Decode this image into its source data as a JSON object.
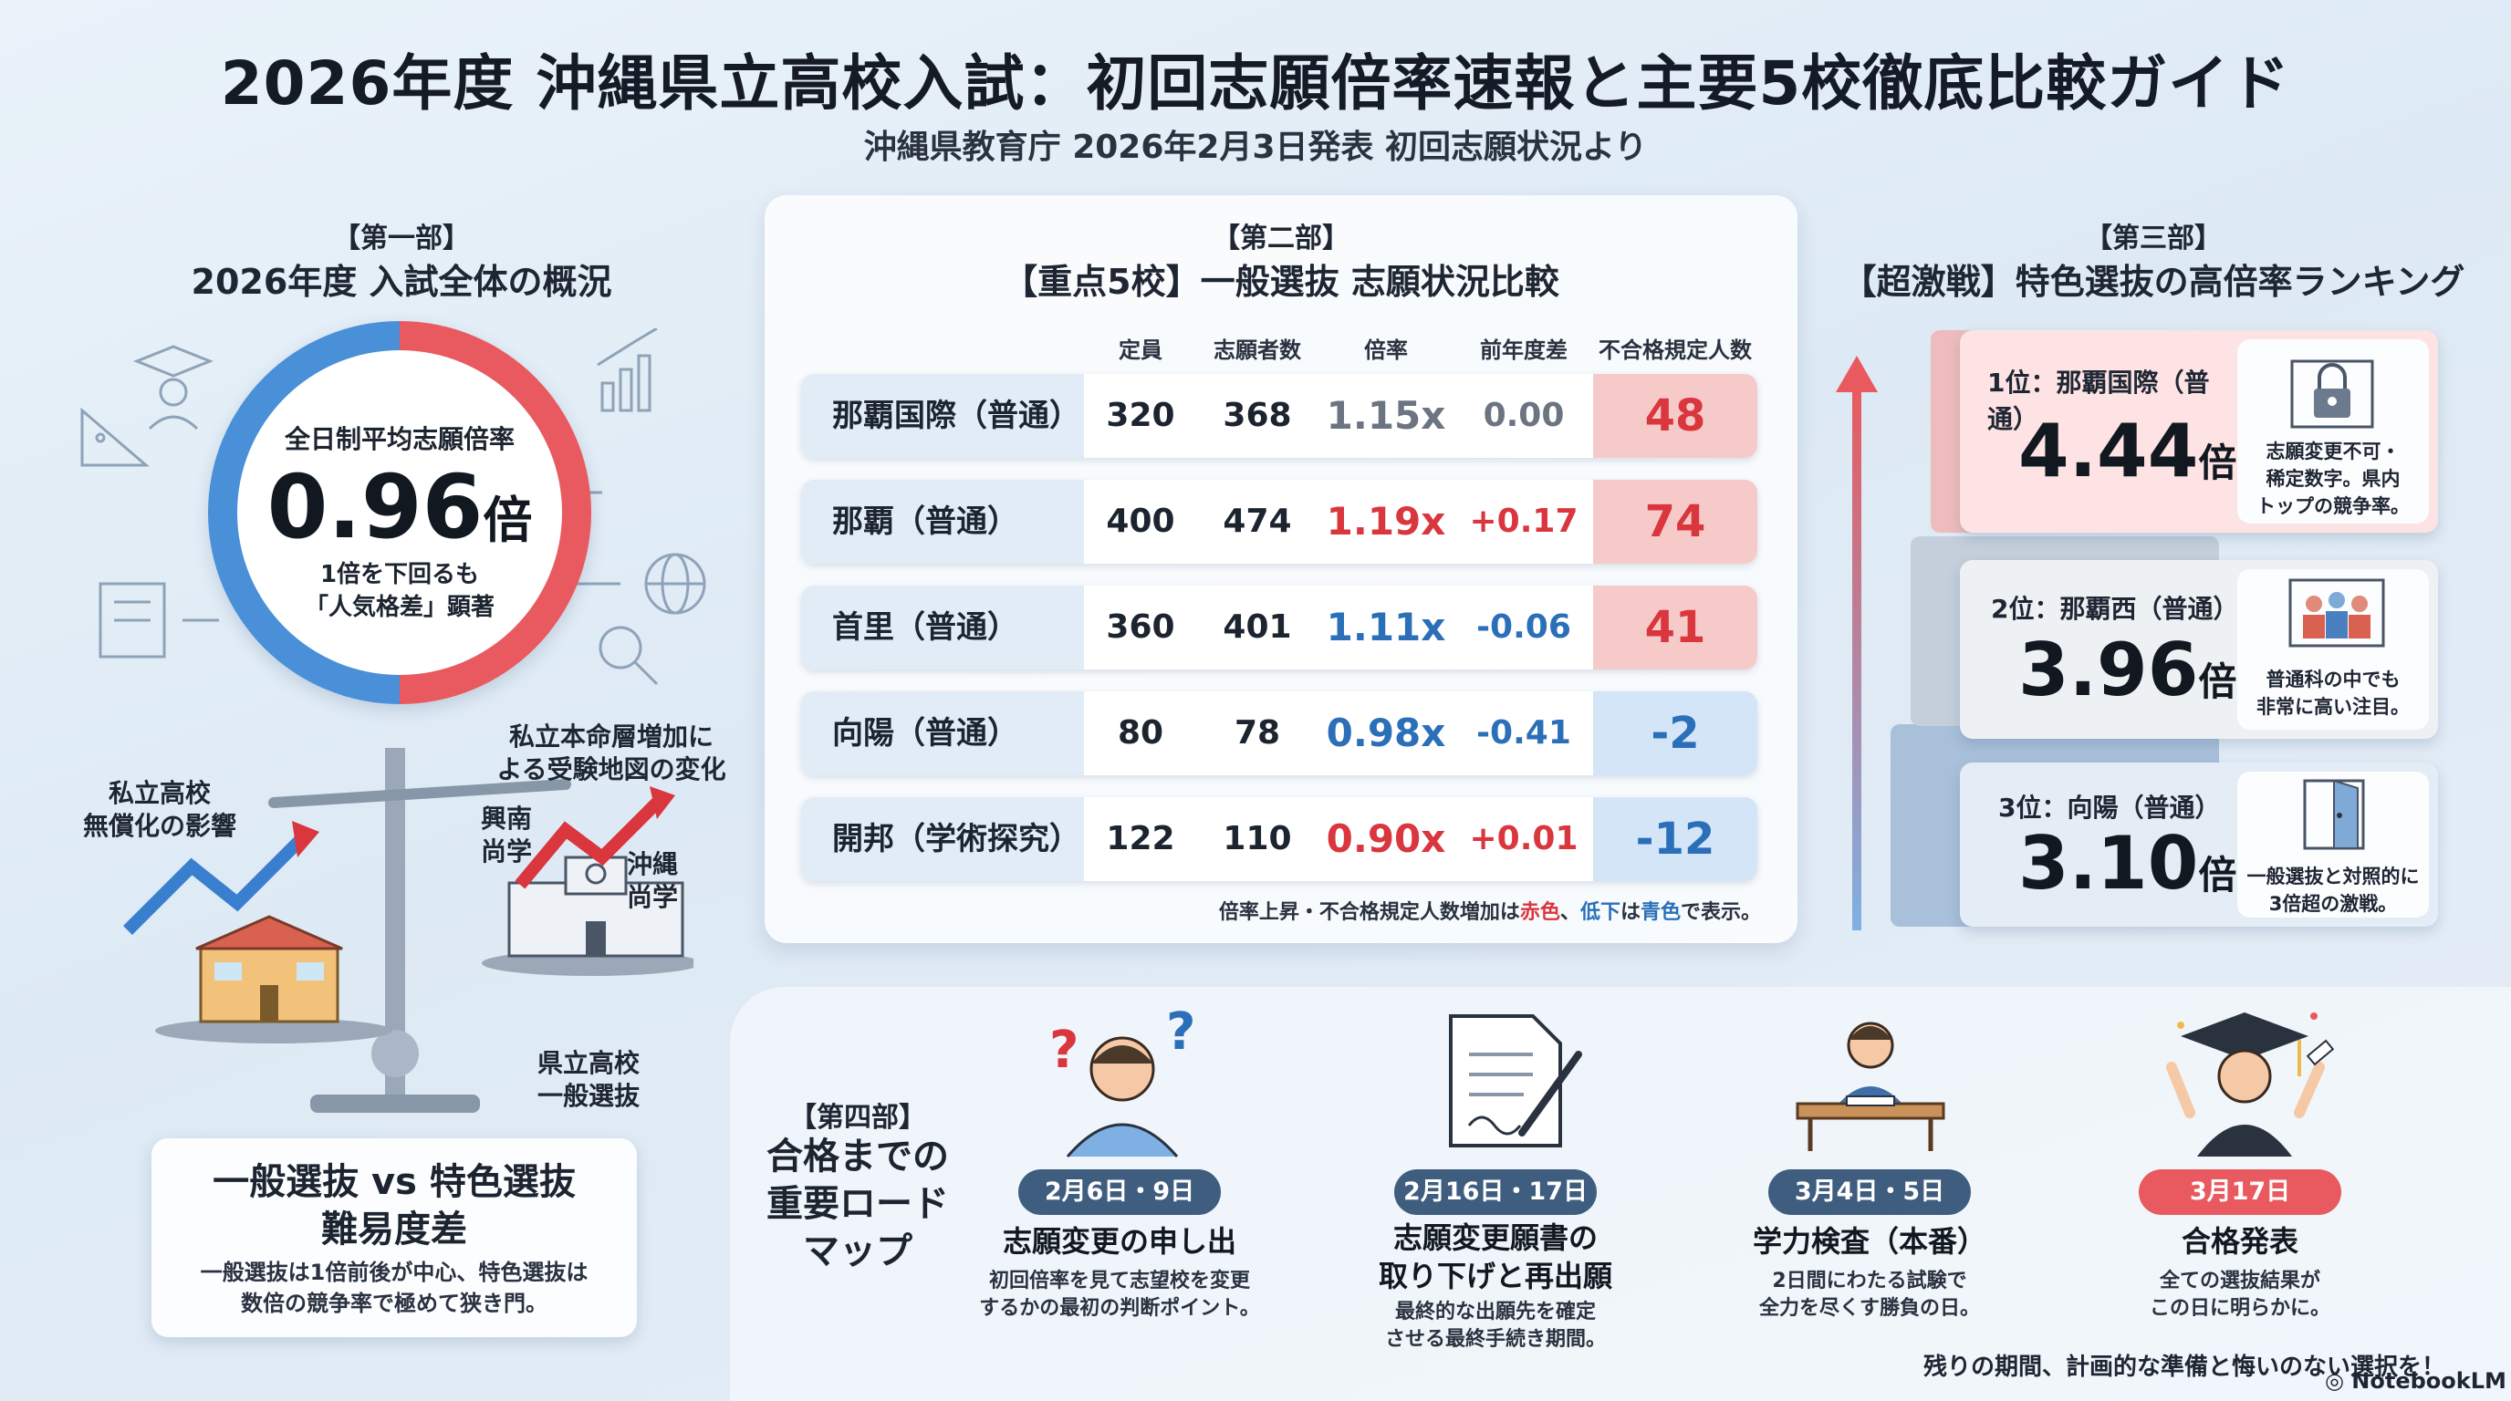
{
  "header": {
    "title": "2026年度 沖縄県立高校入試：初回志願倍率速報と主要5校徹底比較ガイド",
    "subtitle": "沖縄県教育庁 2026年2月3日発表 初回志願状況より"
  },
  "section1": {
    "tag": "【第一部】",
    "title": "2026年度 入試全体の概況",
    "ring_label": "全日制平均志願倍率",
    "ring_value": "0.96",
    "ring_unit": "倍",
    "ring_note_1": "1倍を下回るも",
    "ring_note_2": "「人気格差」顕著",
    "scale_left_1": "私立高校",
    "scale_left_2": "無償化の影響",
    "scale_right_top_1": "私立本命層増加に",
    "scale_right_top_2": "よる受験地図の変化",
    "school_a_1": "興南",
    "school_a_2": "尚学",
    "school_b_1": "沖縄",
    "school_b_2": "尚学",
    "scale_bottom_1": "県立高校",
    "scale_bottom_2": "一般選抜",
    "card_title_1": "一般選抜 vs 特色選抜",
    "card_title_2": "難易度差",
    "card_text_1": "一般選抜は1倍前後が中心、特色選抜は",
    "card_text_2": "数倍の競争率で極めて狭き門。"
  },
  "section2": {
    "tag": "【第二部】",
    "title": "【重点5校】一般選抜 志願状況比較",
    "columns": [
      "定員",
      "志願者数",
      "倍率",
      "前年度差",
      "不合格規定人数"
    ],
    "rows": [
      {
        "name": "那覇国際（普通）",
        "capacity": "320",
        "applicants": "368",
        "ratio": "1.15x",
        "diff": "0.00",
        "fail": "48"
      },
      {
        "name": "那覇（普通）",
        "capacity": "400",
        "applicants": "474",
        "ratio": "1.19x",
        "diff": "+0.17",
        "fail": "74"
      },
      {
        "name": "首里（普通）",
        "capacity": "360",
        "applicants": "401",
        "ratio": "1.11x",
        "diff": "-0.06",
        "fail": "41"
      },
      {
        "name": "向陽（普通）",
        "capacity": "80",
        "applicants": "78",
        "ratio": "0.98x",
        "diff": "-0.41",
        "fail": "-2"
      },
      {
        "name": "開邦（学術探究）",
        "capacity": "122",
        "applicants": "110",
        "ratio": "0.90x",
        "diff": "+0.01",
        "fail": "-12"
      }
    ],
    "note_a": "倍率上昇・不合格規定人数増加は",
    "note_red": "赤色",
    "note_b": "、",
    "note_blue_word": "低下",
    "note_c": "は",
    "note_blue": "青色",
    "note_d": "で表示。",
    "colors": {
      "red": "#d9363e",
      "blue": "#2a6fb8",
      "gray": "#6b7480"
    }
  },
  "section3": {
    "tag": "【第三部】",
    "title": "【超激戦】特色選抜の高倍率ランキング",
    "ranks": [
      {
        "label": "1位：那覇国際（普通）",
        "value": "4.44",
        "unit": "倍",
        "note_1": "志願変更不可・",
        "note_2": "稀定数字。県内",
        "note_3": "トップの競争率。",
        "icon": "padlock-icon"
      },
      {
        "label": "2位：那覇西（普通）",
        "value": "3.96",
        "unit": "倍",
        "note_1": "普通科の中でも",
        "note_2": "非常に高い注目。",
        "note_3": "",
        "icon": "crowd-icon"
      },
      {
        "label": "3位：向陽（普通）",
        "value": "3.10",
        "unit": "倍",
        "note_1": "一般選抜と対照的に",
        "note_2": "3倍超の激戦。",
        "note_3": "",
        "icon": "door-icon"
      }
    ]
  },
  "section4": {
    "tag": "【第四部】",
    "title_1": "合格までの",
    "title_2": "重要ロード",
    "title_3": "マップ",
    "steps": [
      {
        "date": "2月6日・9日",
        "title_1": "志願変更の申し出",
        "title_2": "",
        "text_1": "初回倍率を見て志望校を変更",
        "text_2": "するかの最初の判断ポイント。",
        "icon": "thinking-person-icon"
      },
      {
        "date": "2月16日・17日",
        "title_1": "志願変更願書の",
        "title_2": "取り下げと再出願",
        "text_1": "最終的な出願先を確定",
        "text_2": "させる最終手続き期間。",
        "icon": "document-pen-icon"
      },
      {
        "date": "3月4日・5日",
        "title_1": "学力検査（本番）",
        "title_2": "",
        "text_1": "2日間にわたる試験で",
        "text_2": "全力を尽くす勝負の日。",
        "icon": "exam-desk-icon"
      },
      {
        "date": "3月17日",
        "title_1": "合格発表",
        "title_2": "",
        "text_1": "全ての選抜結果が",
        "text_2": "この日に明らかに。",
        "icon": "graduate-icon"
      }
    ],
    "closing": "残りの期間、計画的な準備と悔いのない選択を！",
    "logo": "NotebookLM"
  }
}
